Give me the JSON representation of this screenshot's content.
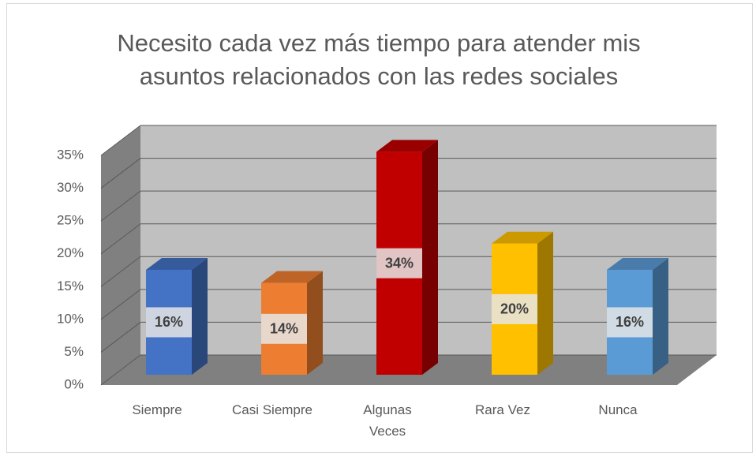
{
  "chart_data": {
    "type": "bar",
    "title": "Necesito cada vez más tiempo para atender mis asuntos relacionados con las redes sociales",
    "categories": [
      "Siempre",
      "Casi Siempre",
      "Algunas Veces",
      "Rara Vez",
      "Nunca"
    ],
    "values": [
      16,
      14,
      34,
      20,
      16
    ],
    "value_labels": [
      "16%",
      "14%",
      "34%",
      "20%",
      "16%"
    ],
    "colors": [
      "#4472c4",
      "#ed7d31",
      "#c00000",
      "#ffc000",
      "#5b9bd5"
    ],
    "ylim": [
      0,
      35
    ],
    "yticks": [
      {
        "value": 0,
        "label": "0%"
      },
      {
        "value": 5,
        "label": "5%"
      },
      {
        "value": 10,
        "label": "10%"
      },
      {
        "value": 15,
        "label": "15%"
      },
      {
        "value": 20,
        "label": "20%"
      },
      {
        "value": 25,
        "label": "25%"
      },
      {
        "value": 30,
        "label": "30%"
      },
      {
        "value": 35,
        "label": "35%"
      }
    ],
    "grid": true
  }
}
